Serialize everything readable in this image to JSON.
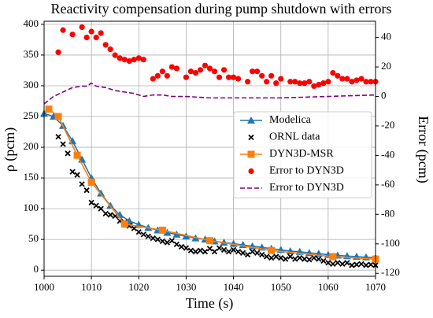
{
  "chart_data": {
    "type": "line",
    "title": "Reactivity compensation during pump shutdown with errors",
    "xlabel": "Time (s)",
    "ylabel": "ρ (pcm)",
    "y2label": "Error (pcm)",
    "xlim": [
      1000,
      1070
    ],
    "ylim": [
      -10,
      405
    ],
    "y2lim": [
      -122,
      51
    ],
    "xticks": [
      1000,
      1010,
      1020,
      1030,
      1040,
      1050,
      1060,
      1070
    ],
    "yticks": [
      0,
      50,
      100,
      150,
      200,
      250,
      300,
      350,
      400
    ],
    "y2ticks": [
      -120,
      -100,
      -80,
      -60,
      -40,
      -20,
      0,
      20,
      40
    ],
    "grid": true,
    "legend": "center right",
    "series": [
      {
        "name": "Modelica",
        "color": "#1f77b4",
        "marker": "triangle",
        "linestyle": "solid",
        "x": [
          1000,
          1002,
          1004,
          1006,
          1008,
          1010,
          1012,
          1014,
          1016,
          1018,
          1020,
          1022,
          1024,
          1026,
          1028,
          1030,
          1032,
          1034,
          1036,
          1038,
          1040,
          1042,
          1044,
          1046,
          1048,
          1050,
          1052,
          1054,
          1056,
          1058,
          1060,
          1062,
          1064,
          1066,
          1068,
          1070
        ],
        "values": [
          255,
          250,
          235,
          210,
          180,
          150,
          125,
          105,
          90,
          80,
          74,
          69,
          65,
          61,
          58,
          55,
          52,
          50,
          47,
          45,
          43,
          41,
          39,
          37,
          35,
          33,
          31,
          30,
          28,
          27,
          25,
          24,
          23,
          22,
          21,
          20
        ]
      },
      {
        "name": "ORNL data",
        "color": "#000000",
        "marker": "x",
        "linestyle": "none",
        "x": [
          1003,
          1004,
          1005,
          1006,
          1007,
          1008,
          1009,
          1010,
          1011,
          1012,
          1013,
          1014,
          1015,
          1016,
          1017,
          1018,
          1019,
          1020,
          1021,
          1022,
          1023,
          1024,
          1025,
          1026,
          1027,
          1028,
          1029,
          1030,
          1031,
          1032,
          1033,
          1034,
          1035,
          1036,
          1037,
          1038,
          1039,
          1040,
          1041,
          1042,
          1043,
          1044,
          1045,
          1046,
          1047,
          1048,
          1049,
          1050,
          1051,
          1052,
          1053,
          1054,
          1055,
          1056,
          1057,
          1058,
          1059,
          1060,
          1061,
          1062,
          1063,
          1064,
          1065,
          1066,
          1067,
          1068,
          1069,
          1070
        ],
        "values": [
          217,
          205,
          190,
          160,
          155,
          140,
          130,
          110,
          105,
          100,
          92,
          90,
          88,
          80,
          78,
          72,
          68,
          62,
          58,
          55,
          52,
          50,
          47,
          45,
          48,
          42,
          38,
          36,
          32,
          30,
          32,
          30,
          35,
          30,
          36,
          33,
          30,
          33,
          30,
          28,
          25,
          30,
          28,
          25,
          22,
          20,
          22,
          20,
          18,
          22,
          18,
          20,
          18,
          17,
          20,
          18,
          15,
          12,
          10,
          12,
          10,
          12,
          8,
          9,
          10,
          8,
          9,
          8
        ]
      },
      {
        "name": "DYN3D-MSR",
        "color": "#ff7f0e",
        "marker": "square",
        "linestyle": "solid",
        "x": [
          1001,
          1003,
          1007,
          1010,
          1017,
          1025,
          1035,
          1048,
          1061,
          1070
        ],
        "values": [
          262,
          250,
          187,
          143,
          75,
          65,
          48,
          32,
          22,
          18
        ]
      },
      {
        "name": "Error to DYN3D",
        "color": "#ff0000",
        "marker": "circle",
        "linestyle": "none",
        "axis": "y2",
        "x": [
          1003,
          1004,
          1006,
          1008,
          1009,
          1010,
          1011,
          1012,
          1013,
          1014,
          1015,
          1016,
          1017,
          1018,
          1019,
          1020,
          1021,
          1023,
          1024,
          1025,
          1026,
          1027,
          1028,
          1030,
          1031,
          1032,
          1033,
          1034,
          1035,
          1036,
          1037,
          1038,
          1039,
          1040,
          1041,
          1043,
          1044,
          1045,
          1046,
          1047,
          1048,
          1049,
          1050,
          1052,
          1053,
          1054,
          1055,
          1056,
          1057,
          1058,
          1059,
          1060,
          1061,
          1062,
          1063,
          1064,
          1065,
          1066,
          1067,
          1068,
          1069,
          1070
        ],
        "values": [
          30,
          45,
          42,
          47,
          40,
          44,
          40,
          43,
          35,
          32,
          28,
          26,
          25,
          24,
          25,
          26,
          25,
          12,
          14,
          17,
          14,
          20,
          19,
          13,
          17,
          16,
          18,
          21,
          19,
          17,
          13,
          18,
          13,
          13,
          12,
          10,
          17,
          17,
          14,
          10,
          14,
          9,
          12,
          10,
          10,
          9,
          9,
          10,
          7,
          8,
          9,
          10,
          16,
          14,
          12,
          12,
          10,
          11,
          12,
          10,
          10,
          10
        ]
      },
      {
        "name": "Error to DYN3D",
        "color": "#800080",
        "marker": "none",
        "linestyle": "dashed",
        "axis": "y2",
        "x": [
          1000,
          1002,
          1004,
          1006,
          1008,
          1009,
          1010,
          1011,
          1013,
          1015,
          1017,
          1019,
          1021,
          1023,
          1025,
          1027,
          1030,
          1035,
          1040,
          1050,
          1060,
          1070
        ],
        "values": [
          -5,
          0,
          3,
          6,
          7,
          7,
          9,
          7,
          6,
          4,
          3,
          2,
          0,
          1,
          1,
          0,
          0,
          -1,
          -1,
          -1,
          0,
          1
        ]
      }
    ]
  }
}
